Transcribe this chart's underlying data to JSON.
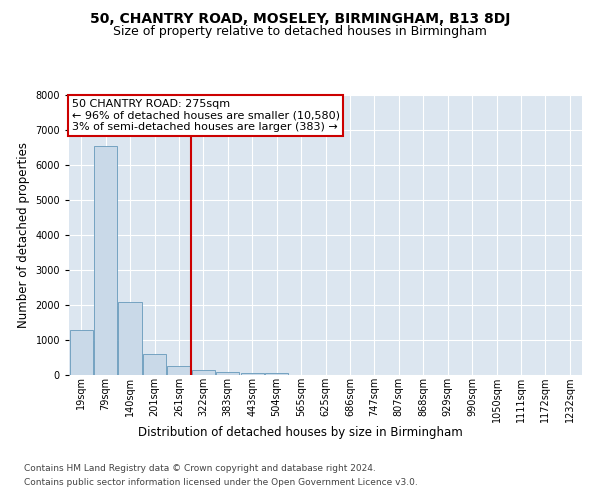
{
  "title": "50, CHANTRY ROAD, MOSELEY, BIRMINGHAM, B13 8DJ",
  "subtitle": "Size of property relative to detached houses in Birmingham",
  "xlabel": "Distribution of detached houses by size in Birmingham",
  "ylabel": "Number of detached properties",
  "footer1": "Contains HM Land Registry data © Crown copyright and database right 2024.",
  "footer2": "Contains public sector information licensed under the Open Government Licence v3.0.",
  "bar_labels": [
    "19sqm",
    "79sqm",
    "140sqm",
    "201sqm",
    "261sqm",
    "322sqm",
    "383sqm",
    "443sqm",
    "504sqm",
    "565sqm",
    "625sqm",
    "686sqm",
    "747sqm",
    "807sqm",
    "868sqm",
    "929sqm",
    "990sqm",
    "1050sqm",
    "1111sqm",
    "1172sqm",
    "1232sqm"
  ],
  "bar_values": [
    1300,
    6550,
    2100,
    600,
    250,
    130,
    100,
    70,
    70,
    0,
    0,
    0,
    0,
    0,
    0,
    0,
    0,
    0,
    0,
    0,
    0
  ],
  "bar_color": "#c9d9e8",
  "bar_edge_color": "#6699bb",
  "vline_x": 4.5,
  "vline_color": "#cc0000",
  "annotation_text": "50 CHANTRY ROAD: 275sqm\n← 96% of detached houses are smaller (10,580)\n3% of semi-detached houses are larger (383) →",
  "annotation_box_color": "#ffffff",
  "annotation_box_edge": "#cc0000",
  "ylim": [
    0,
    8000
  ],
  "background_color": "#dce6f0",
  "grid_color": "#ffffff",
  "title_fontsize": 10,
  "subtitle_fontsize": 9,
  "axis_label_fontsize": 8.5,
  "tick_fontsize": 7,
  "annotation_fontsize": 8,
  "footer_fontsize": 6.5
}
